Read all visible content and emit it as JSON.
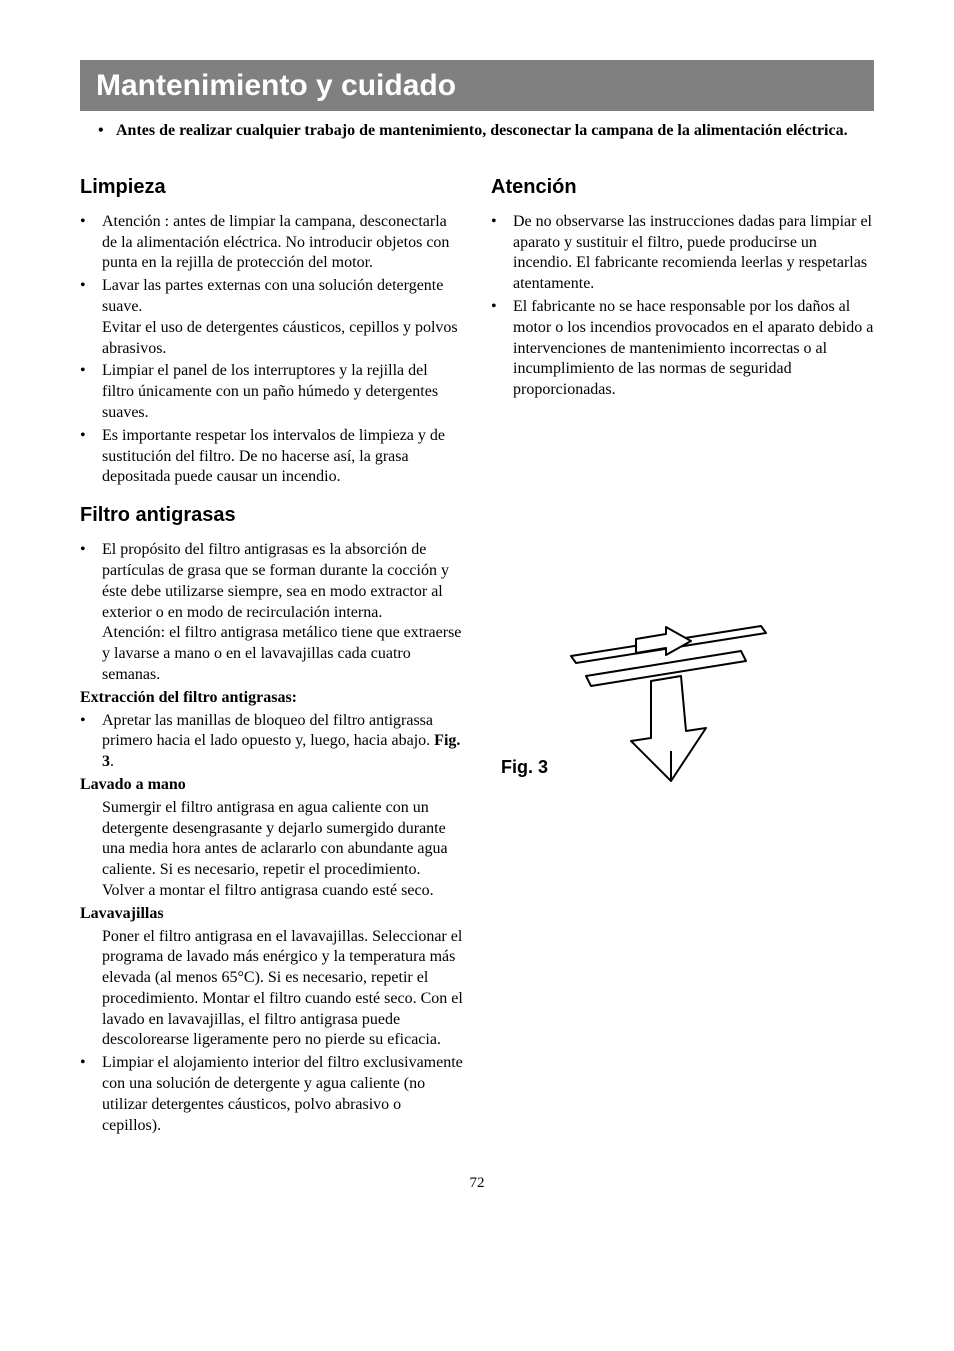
{
  "title": "Mantenimiento y cuidado",
  "intro": "Antes de realizar cualquier trabajo de mantenimiento, desconectar la campana de la alimentación eléctrica.",
  "limpieza": {
    "heading": "Limpieza",
    "items": [
      "Atención : antes de limpiar la campana, desconectarla de la alimentación eléctrica. No introducir objetos con punta en la rejilla de protección del motor.",
      "Lavar las partes externas con una solución detergente suave.\nEvitar el uso de detergentes cáusticos, cepillos y polvos abrasivos.",
      "Limpiar el panel de los interruptores y la rejilla del filtro únicamente con un paño húmedo y detergentes suaves.",
      "Es importante respetar los intervalos de limpieza y de sustitución del filtro. De no hacerse así, la grasa depositada puede causar un incendio."
    ]
  },
  "filtro": {
    "heading": "Filtro antigrasas",
    "intro": "El propósito del filtro antigrasas es la absorción de partículas de grasa que se forman durante la cocción y éste debe utilizarse siempre, sea en modo extractor al exterior o en modo de recirculación interna.\nAtención: el filtro antigrasa metálico tiene que extraerse y lavarse a mano o en el lavavajillas cada cuatro semanas.",
    "extraccion_heading": "Extracción del filtro antigrasas:",
    "extraccion": "Apretar las manillas de bloqueo  del filtro antigrassa primero hacia el lado opuesto y, luego, hacia abajo. ",
    "extraccion_figref": "Fig. 3",
    "lavado_heading": "Lavado a mano",
    "lavado": "Sumergir el filtro antigrasa en agua caliente con un detergente desengrasante y dejarlo sumergido durante una media hora antes de aclararlo con abundante agua caliente. Si es necesario, repetir el procedimiento. Volver a montar el filtro antigrasa cuando esté seco.",
    "lavavajillas_heading": "Lavavajillas",
    "lavavajillas": "Poner el filtro antigrasa en el lavavajillas. Seleccionar el programa de lavado más enérgico y la temperatura más elevada (al menos 65°C). Si es necesario, repetir el procedimiento. Montar el filtro cuando esté seco. Con el lavado en lavavajillas, el filtro antigrasa puede descolorearse ligeramente pero no pierde su eficacia.",
    "limpiar": "Limpiar el alojamiento interior del filtro exclusivamente con una solución de detergente y agua caliente (no utilizar detergentes cáusticos, polvo abrasivo o cepillos)."
  },
  "atencion": {
    "heading": "Atención",
    "items": [
      "De no observarse las instrucciones dadas para limpiar el aparato y sustituir el filtro, puede producirse un incendio. El fabricante recomienda leerlas y respetarlas atentamente.",
      "El fabricante no se hace responsable por los daños al motor o los incendios provocados en el aparato debido a intervenciones de mantenimiento incorrectas o al incumplimiento de las normas de seguridad proporcionadas."
    ]
  },
  "figure_label": "Fig. 3",
  "page_number": "72",
  "colors": {
    "title_bg": "#808080",
    "title_fg": "#ffffff",
    "text": "#000000",
    "page_bg": "#ffffff"
  }
}
